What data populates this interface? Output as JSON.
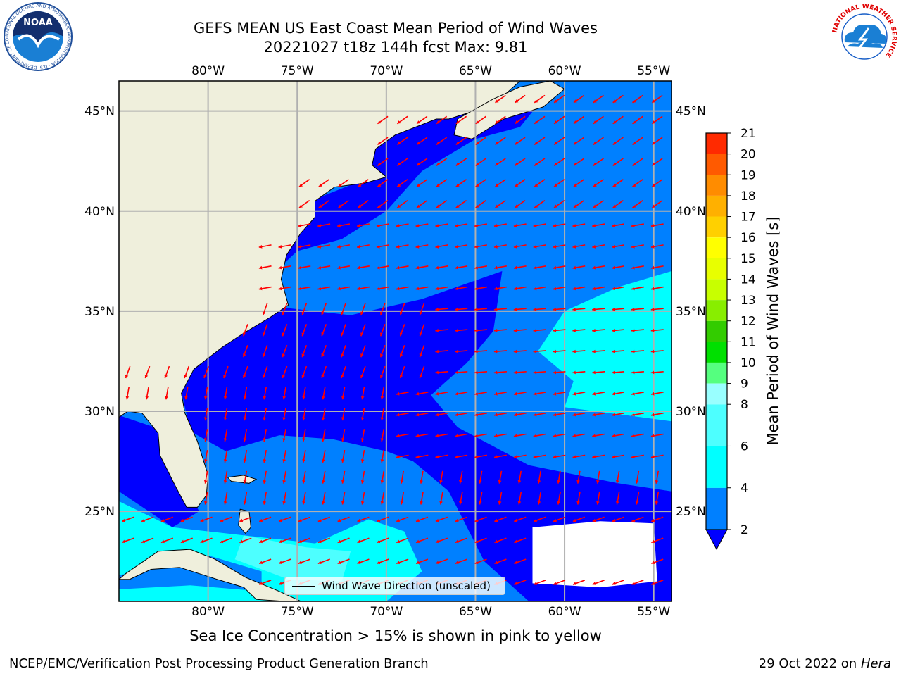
{
  "header": {
    "title_line1": "GEFS MEAN US East Coast Mean Period of Wind Waves",
    "title_line2": "20221027 t18z 144h fcst   Max: 9.81"
  },
  "logos": {
    "noaa_text": "NOAA",
    "noaa_ring_text": "NATIONAL OCEANIC AND ATMOSPHERIC ADMINISTRATION · U.S. DEPARTMENT OF COMMERCE",
    "nws_ring_text": "NATIONAL WEATHER SERVICE"
  },
  "map": {
    "projection": "PlateCarree",
    "lon_range": [
      -85,
      -54
    ],
    "lat_range": [
      20.5,
      46.5
    ],
    "lon_ticks": [
      {
        "v": -80,
        "label": "80°W"
      },
      {
        "v": -75,
        "label": "75°W"
      },
      {
        "v": -70,
        "label": "70°W"
      },
      {
        "v": -65,
        "label": "65°W"
      },
      {
        "v": -60,
        "label": "60°W"
      },
      {
        "v": -55,
        "label": "55°W"
      }
    ],
    "lat_ticks": [
      {
        "v": 45,
        "label": "45°N"
      },
      {
        "v": 40,
        "label": "40°N"
      },
      {
        "v": 35,
        "label": "35°N"
      },
      {
        "v": 30,
        "label": "30°N"
      },
      {
        "v": 25,
        "label": "25°N"
      }
    ],
    "grid": true,
    "land_color": "#efefdc",
    "arrow_color": "#ff0000",
    "legend_label": "Wind Wave Direction (unscaled)",
    "legend_placement": "lower-center"
  },
  "colorbar": {
    "label": "Mean Period of Wind Waves [s]",
    "ticks": [
      "2",
      "4",
      "6",
      "8",
      "9",
      "10",
      "11",
      "12",
      "13",
      "14",
      "15",
      "16",
      "17",
      "18",
      "19",
      "20",
      "21"
    ],
    "levels": [
      2,
      4,
      6,
      8,
      9,
      10,
      11,
      12,
      13,
      14,
      15,
      16,
      17,
      18,
      19,
      20,
      21
    ],
    "colors": [
      "#0080ff",
      "#00ffff",
      "#4dffff",
      "#99ffff",
      "#55ff7f",
      "#00e000",
      "#33cc00",
      "#88ee00",
      "#c8ff00",
      "#e8ff00",
      "#ffff00",
      "#ffd000",
      "#ffb000",
      "#ff8c00",
      "#ff5a00",
      "#ff2a00"
    ],
    "under_color": "#0000ff",
    "extend": "min"
  },
  "footer": {
    "subtitle": "Sea Ice Concentration > 15% is shown in pink to yellow",
    "credit": "NCEP/EMC/Verification Post Processing Product Generation Branch",
    "date": "29 Oct 2022 on ",
    "machine": "Hera"
  }
}
